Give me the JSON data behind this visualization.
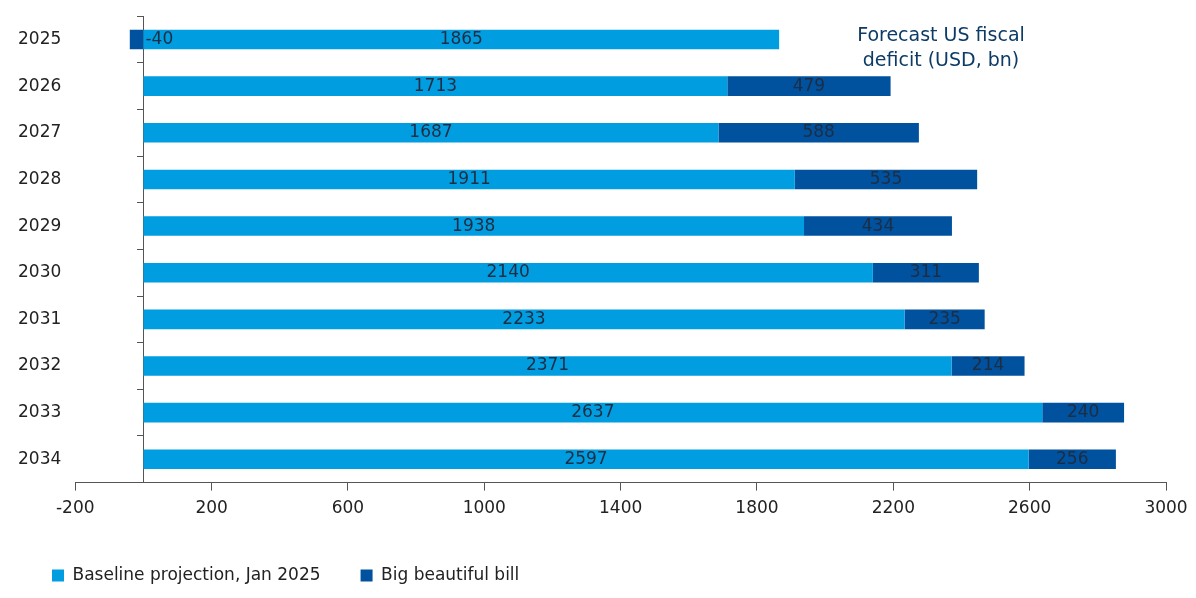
{
  "chart_data": {
    "type": "bar",
    "orientation": "horizontal",
    "stacked": true,
    "title": "Forecast US fiscal deficit (USD, bn)",
    "categories": [
      "2025",
      "2026",
      "2027",
      "2028",
      "2029",
      "2030",
      "2031",
      "2032",
      "2033",
      "2034"
    ],
    "series": [
      {
        "name": "Baseline projection, Jan 2025",
        "color": "#009ee0",
        "values": [
          1865,
          1713,
          1687,
          1911,
          1938,
          2140,
          2233,
          2371,
          2637,
          2597
        ]
      },
      {
        "name": "Big beautiful bill",
        "color": "#00519e",
        "values": [
          -40,
          479,
          588,
          535,
          434,
          311,
          235,
          214,
          240,
          256
        ]
      }
    ],
    "xlim": [
      -200,
      3000
    ],
    "xticks": [
      -200,
      200,
      600,
      1000,
      1400,
      1800,
      2200,
      2600,
      3000
    ],
    "data_labels": true,
    "legend": "bottom",
    "grid": false
  }
}
